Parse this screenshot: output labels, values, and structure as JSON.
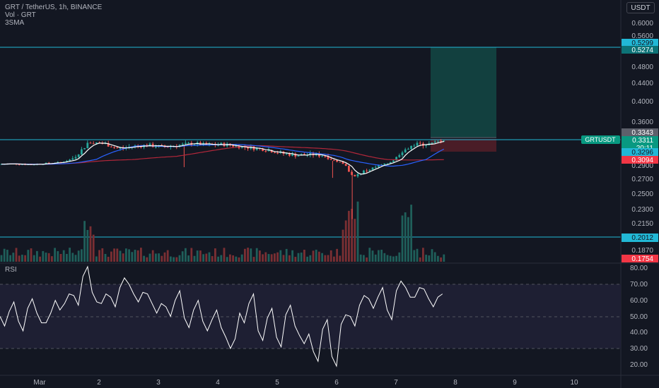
{
  "header": {
    "symbol_line": "GRT / TetherUS, 1h, BINANCE",
    "vol_line": "Vol · GRT",
    "sma_line": "3SMA",
    "currency_button": "USDT"
  },
  "price_axis": {
    "ticks": [
      "0.6000",
      "0.5600",
      "0.4800",
      "0.4400",
      "0.4000",
      "0.3600",
      "0.2900",
      "0.2700",
      "0.2500",
      "0.2300",
      "0.2150",
      "0.1870"
    ]
  },
  "price_tags": {
    "target_top": "0.5299",
    "target": "0.5274",
    "grey_tag": "0.3343",
    "last_price": "0.3311",
    "countdown": "20:11",
    "sma_value": "0.3296",
    "stop": "0.3094",
    "support_line": "0.2012",
    "low_tag": "0.1754",
    "symbol_tag": "GRTUSDT"
  },
  "rsi": {
    "label": "RSI",
    "ticks": [
      "80.00",
      "70.00",
      "60.00",
      "50.00",
      "40.00",
      "30.00",
      "20.00"
    ]
  },
  "time_axis": {
    "labels": [
      "Mar",
      "2",
      "3",
      "4",
      "5",
      "6",
      "7",
      "8",
      "9",
      "10"
    ]
  },
  "colors": {
    "background": "#131722",
    "up": "#26a69a",
    "down": "#ef5350",
    "horizontal_lines": "#22b8d6",
    "target_zone": "#12403f",
    "stop_zone": "#4a1d27",
    "sma_fast": "#ffffff",
    "sma_mid": "#2962ff",
    "sma_slow": "#b2273a",
    "rsi_line": "#ffffff",
    "rsi_band": "#1e1f33"
  },
  "chart_data": {
    "type": "candlestick",
    "symbol": "GRT / TetherUS",
    "interval": "1h",
    "exchange": "BINANCE",
    "price_range": [
      0.1754,
      0.6
    ],
    "horizontal_levels": [
      0.5274,
      0.3311,
      0.2012
    ],
    "long_position": {
      "entry": 0.3311,
      "target": 0.5274,
      "stop": 0.3094
    },
    "close_path": [
      [
        0,
        0.295
      ],
      [
        0.25,
        0.296
      ],
      [
        0.5,
        0.294
      ],
      [
        0.75,
        0.297
      ],
      [
        1.0,
        0.3
      ],
      [
        1.25,
        0.312
      ],
      [
        1.5,
        0.328
      ],
      [
        1.75,
        0.327
      ],
      [
        2.0,
        0.321
      ],
      [
        2.25,
        0.324
      ],
      [
        2.5,
        0.325
      ],
      [
        2.75,
        0.323
      ],
      [
        3.0,
        0.325
      ],
      [
        3.25,
        0.327
      ],
      [
        3.5,
        0.325
      ],
      [
        3.75,
        0.326
      ],
      [
        4.0,
        0.324
      ],
      [
        4.25,
        0.322
      ],
      [
        4.5,
        0.32
      ],
      [
        4.75,
        0.316
      ],
      [
        5.0,
        0.314
      ],
      [
        5.25,
        0.315
      ],
      [
        5.5,
        0.313
      ],
      [
        5.75,
        0.3
      ],
      [
        5.95,
        0.272
      ],
      [
        6.1,
        0.281
      ],
      [
        6.3,
        0.287
      ],
      [
        6.5,
        0.296
      ],
      [
        6.75,
        0.318
      ],
      [
        7.0,
        0.326
      ],
      [
        7.25,
        0.326
      ],
      [
        7.45,
        0.3311
      ]
    ],
    "rsi": {
      "range": [
        15,
        85
      ],
      "bands": [
        30,
        70
      ],
      "values": [
        50,
        53,
        47,
        55,
        52,
        46,
        60,
        58,
        63,
        75,
        65,
        58,
        62,
        68,
        70,
        59,
        64,
        52,
        56,
        60,
        49,
        54,
        47,
        48,
        43,
        30,
        52,
        58,
        41,
        49,
        37,
        51,
        44,
        33,
        28,
        42,
        25,
        45,
        50,
        57,
        61,
        62,
        54,
        66,
        68,
        62,
        67,
        56,
        64
      ]
    }
  }
}
